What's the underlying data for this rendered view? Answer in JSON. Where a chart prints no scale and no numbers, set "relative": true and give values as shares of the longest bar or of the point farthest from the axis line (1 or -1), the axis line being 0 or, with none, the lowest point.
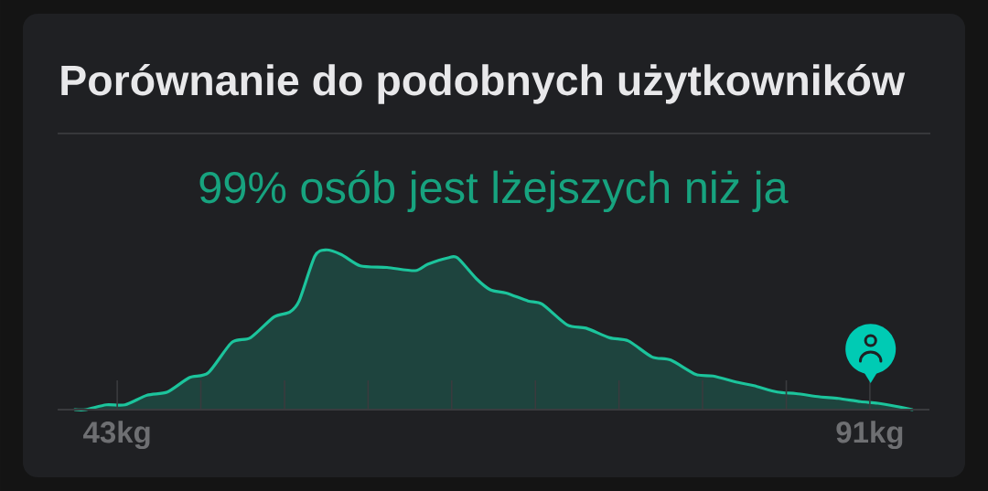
{
  "chart_data": {
    "type": "area",
    "title": "Porównanie do podobnych użytkowników",
    "subtitle": "99% osób jest lżejszych niż ja",
    "relative": true,
    "x": [
      40.3,
      41.0,
      42.3,
      43.5,
      44.9,
      46.2,
      47.6,
      48.8,
      50.3,
      51.5,
      53.0,
      54.0,
      54.6,
      55.6,
      56.3,
      57.3,
      58.5,
      60.2,
      62.0,
      62.8,
      64.1,
      64.7,
      65.9,
      66.8,
      67.8,
      69.2,
      70.1,
      71.7,
      72.9,
      74.4,
      75.6,
      77.1,
      78.3,
      79.9,
      81.0,
      82.6,
      83.6,
      85.1,
      86.3,
      87.8,
      89.0,
      90.4,
      91.5,
      92.7,
      93.7
    ],
    "values": [
      0,
      0,
      0.03,
      0.03,
      0.09,
      0.11,
      0.2,
      0.23,
      0.42,
      0.45,
      0.58,
      0.61,
      0.68,
      0.96,
      1,
      0.97,
      0.9,
      0.89,
      0.87,
      0.91,
      0.95,
      0.95,
      0.82,
      0.75,
      0.73,
      0.68,
      0.66,
      0.53,
      0.51,
      0.45,
      0.43,
      0.33,
      0.31,
      0.22,
      0.21,
      0.17,
      0.15,
      0.11,
      0.1,
      0.08,
      0.07,
      0.05,
      0.04,
      0.02,
      0
    ],
    "color": "#1cc49c",
    "xlim": [
      39.2,
      94.8
    ],
    "xticks": [
      {
        "value": 43,
        "label": "43kg"
      },
      {
        "value": 48.33,
        "label": null
      },
      {
        "value": 53.67,
        "label": null
      },
      {
        "value": 59,
        "label": null
      },
      {
        "value": 64.33,
        "label": null
      },
      {
        "value": 69.67,
        "label": null
      },
      {
        "value": 75,
        "label": null
      },
      {
        "value": 80.33,
        "label": null
      },
      {
        "value": 85.67,
        "label": null
      },
      {
        "value": 91,
        "label": "91kg"
      }
    ],
    "grid": "x",
    "marker": "none",
    "line_style": "solid"
  }
}
